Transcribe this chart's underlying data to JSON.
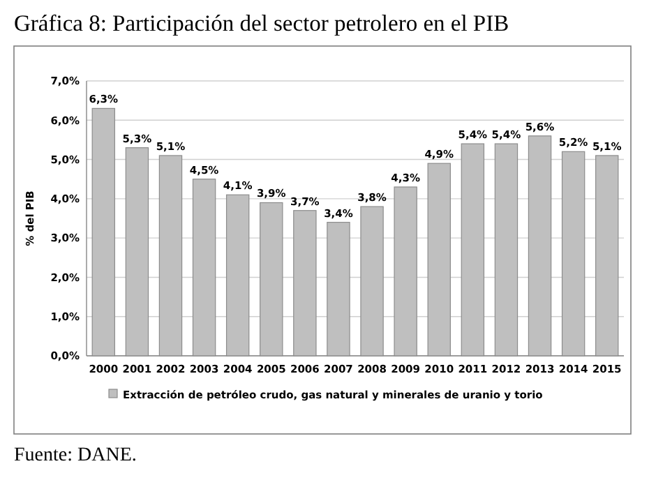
{
  "chart_data": {
    "type": "bar",
    "title": "Gráfica 8: Participación del sector petrolero en el PIB",
    "ylabel": "% del PIB",
    "categories": [
      "2000",
      "2001",
      "2002",
      "2003",
      "2004",
      "2005",
      "2006",
      "2007",
      "2008",
      "2009",
      "2010",
      "2011",
      "2012",
      "2013",
      "2014",
      "2015"
    ],
    "series": [
      {
        "name": "Extracción de petróleo crudo, gas natural y minerales de uranio y torio",
        "color": "#bfbfbf",
        "values": [
          6.3,
          5.3,
          5.1,
          4.5,
          4.1,
          3.9,
          3.7,
          3.4,
          3.8,
          4.3,
          4.9,
          5.4,
          5.4,
          5.6,
          5.2,
          5.1
        ],
        "value_labels": [
          "6,3%",
          "5,3%",
          "5,1%",
          "4,5%",
          "4,1%",
          "3,9%",
          "3,7%",
          "3,4%",
          "3,8%",
          "4,3%",
          "4,9%",
          "5,4%",
          "5,4%",
          "5,6%",
          "5,2%",
          "5,1%"
        ]
      }
    ],
    "ylim": [
      0,
      7
    ],
    "yticks": [
      {
        "value": 0,
        "label": "0,0%"
      },
      {
        "value": 1,
        "label": "1,0%"
      },
      {
        "value": 2,
        "label": "2,0%"
      },
      {
        "value": 3,
        "label": "3,0%"
      },
      {
        "value": 4,
        "label": "4,0%"
      },
      {
        "value": 5,
        "label": "5,0%"
      },
      {
        "value": 6,
        "label": "6,0%"
      },
      {
        "value": 7,
        "label": "7,0%"
      }
    ],
    "grid": "y",
    "legend": "bottom",
    "annotations": [
      "Fuente: DANE."
    ]
  }
}
